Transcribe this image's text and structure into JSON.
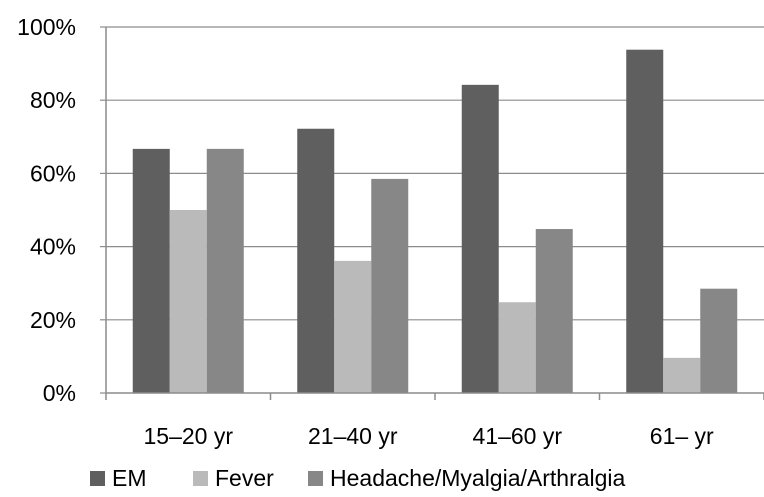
{
  "chart_data": {
    "type": "bar",
    "categories": [
      "15–20 yr",
      "21–40 yr",
      "41–60 yr",
      "61– yr"
    ],
    "series": [
      {
        "name": "EM",
        "values": [
          66.7,
          72.2,
          84.2,
          93.8
        ],
        "color": "#5f5f5f"
      },
      {
        "name": "Fever",
        "values": [
          50.0,
          36.1,
          24.8,
          9.6
        ],
        "color": "#bababa"
      },
      {
        "name": "Headache/Myalgia/Arthralgia",
        "values": [
          66.7,
          58.5,
          44.8,
          28.5
        ],
        "color": "#878787"
      }
    ],
    "yticks": [
      "0%",
      "20%",
      "40%",
      "60%",
      "80%",
      "100%"
    ],
    "ylim": [
      0,
      100
    ],
    "title": "",
    "xlabel": "",
    "ylabel": "",
    "grid": true,
    "legend_position": "bottom"
  }
}
